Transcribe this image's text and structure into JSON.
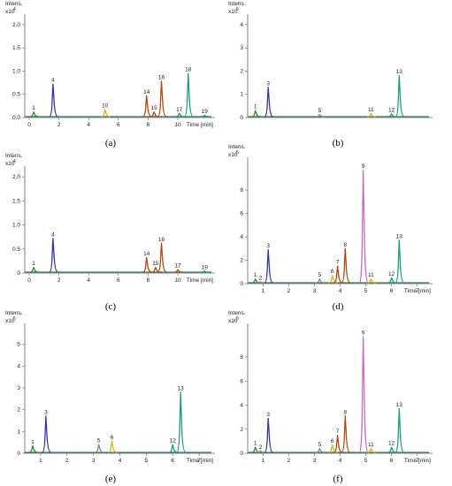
{
  "chart_data": [
    {
      "type": "line",
      "caption": "(a)",
      "yunit": "Intens.",
      "yexp": "x10",
      "yexp_power": "4",
      "xlabel": "Time [min]",
      "xlim": [
        -0.3,
        12.5
      ],
      "ylim": [
        0,
        2.15
      ],
      "xticks": [
        "0",
        "2",
        "4",
        "6",
        "8",
        "10"
      ],
      "xtick_values": [
        0,
        2,
        4,
        6,
        8,
        10
      ],
      "yticks": [
        "0.0",
        "0.5",
        "1.0",
        "1.5",
        "2.0"
      ],
      "ytick_values": [
        0.0,
        0.5,
        1.0,
        1.5,
        2.0
      ],
      "peaks": [
        {
          "label": "1",
          "x": 0.3,
          "y": 0.12,
          "color": "#2e8b2e"
        },
        {
          "label": "4",
          "x": 1.6,
          "y": 0.72,
          "color": "#3333aa"
        },
        {
          "label": "10",
          "x": 5.1,
          "y": 0.17,
          "color": "#d6b21e"
        },
        {
          "label": "14",
          "x": 7.9,
          "y": 0.47,
          "color": "#b8440f"
        },
        {
          "label": "15",
          "x": 8.4,
          "y": 0.12,
          "color": "#b8440f"
        },
        {
          "label": "16",
          "x": 8.9,
          "y": 0.78,
          "color": "#b8440f"
        },
        {
          "label": "17",
          "x": 10.1,
          "y": 0.09,
          "color": "#1a9a8a"
        },
        {
          "label": "18",
          "x": 10.7,
          "y": 0.95,
          "color": "#1a9a8a"
        },
        {
          "label": "19",
          "x": 11.8,
          "y": 0.05,
          "color": "#1a9a8a"
        }
      ]
    },
    {
      "type": "line",
      "caption": "(b)",
      "yunit": "Intens.",
      "yexp": "x10",
      "yexp_power": "5",
      "xlabel": "",
      "xlim": [
        0.4,
        7.6
      ],
      "ylim": [
        0,
        4.3
      ],
      "xticks": [],
      "xtick_values": [],
      "yticks": [
        "4",
        "3",
        "2",
        "1",
        "0"
      ],
      "ytick_values": [
        4,
        3,
        2,
        1,
        0
      ],
      "peaks": [
        {
          "label": "1",
          "x": 0.7,
          "y": 0.3,
          "color": "#2e8b2e"
        },
        {
          "label": "3",
          "x": 1.2,
          "y": 1.3,
          "color": "#3333aa"
        },
        {
          "label": "5",
          "x": 3.2,
          "y": 0.13,
          "color": "#888888"
        },
        {
          "label": "11",
          "x": 5.2,
          "y": 0.18,
          "color": "#d6b21e"
        },
        {
          "label": "12",
          "x": 6.0,
          "y": 0.16,
          "color": "#1a9a8a"
        },
        {
          "label": "13",
          "x": 6.3,
          "y": 1.8,
          "color": "#1a9a8a"
        }
      ]
    },
    {
      "type": "line",
      "caption": "(c)",
      "yunit": "Intens.",
      "yexp": "x10",
      "yexp_power": "4",
      "xlabel": "Time [min]",
      "xlim": [
        -0.3,
        12.5
      ],
      "ylim": [
        0,
        2.15
      ],
      "xticks": [
        "0",
        "2",
        "4",
        "6",
        "8",
        "10"
      ],
      "xtick_values": [
        0,
        2,
        4,
        6,
        8,
        10
      ],
      "yticks": [
        "0",
        "0.5",
        "1.0",
        "1.5",
        "2.0"
      ],
      "ytick_values": [
        0,
        0.5,
        1.0,
        1.5,
        2.0
      ],
      "peaks": [
        {
          "label": "1",
          "x": 0.3,
          "y": 0.12,
          "color": "#2e8b2e"
        },
        {
          "label": "4",
          "x": 1.6,
          "y": 0.72,
          "color": "#3333aa"
        },
        {
          "label": "14",
          "x": 7.9,
          "y": 0.32,
          "color": "#b8440f"
        },
        {
          "label": "15",
          "x": 8.5,
          "y": 0.12,
          "color": "#b8440f"
        },
        {
          "label": "16",
          "x": 8.9,
          "y": 0.62,
          "color": "#b8440f"
        },
        {
          "label": "17",
          "x": 10.0,
          "y": 0.07,
          "color": "#b8440f"
        },
        {
          "label": "19",
          "x": 11.8,
          "y": 0.04,
          "color": "#1a9a8a"
        }
      ]
    },
    {
      "type": "line",
      "caption": "(d)",
      "yunit": "Intens.",
      "yexp": "x10",
      "yexp_power": "5",
      "xlabel": "Time [min]",
      "xlim": [
        0.4,
        7.6
      ],
      "ylim": [
        0,
        10.5
      ],
      "xticks": [
        "1",
        "2",
        "3",
        "4",
        "5",
        "6",
        "7"
      ],
      "xtick_values": [
        1,
        2,
        3,
        4,
        5,
        6,
        7
      ],
      "yticks": [
        "8",
        "6",
        "4",
        "2",
        "0"
      ],
      "ytick_values": [
        8,
        6,
        4,
        2,
        0
      ],
      "peaks": [
        {
          "label": "1",
          "x": 0.7,
          "y": 0.4,
          "color": "#2e8b2e"
        },
        {
          "label": "2",
          "x": 0.9,
          "y": 0.15,
          "color": "#888888"
        },
        {
          "label": "3",
          "x": 1.2,
          "y": 2.9,
          "color": "#3333aa"
        },
        {
          "label": "5",
          "x": 3.2,
          "y": 0.4,
          "color": "#888888"
        },
        {
          "label": "6",
          "x": 3.7,
          "y": 0.7,
          "color": "#d6b21e"
        },
        {
          "label": "7",
          "x": 3.9,
          "y": 1.5,
          "color": "#b8440f"
        },
        {
          "label": "8",
          "x": 4.2,
          "y": 3.0,
          "color": "#b8440f"
        },
        {
          "label": "9",
          "x": 4.9,
          "y": 9.7,
          "color": "#cc66cc"
        },
        {
          "label": "11",
          "x": 5.2,
          "y": 0.4,
          "color": "#d6b21e"
        },
        {
          "label": "12",
          "x": 6.0,
          "y": 0.5,
          "color": "#1a9a8a"
        },
        {
          "label": "13",
          "x": 6.3,
          "y": 3.7,
          "color": "#1a9a8a"
        }
      ]
    },
    {
      "type": "line",
      "caption": "(e)",
      "yunit": "Intens.",
      "yexp": "x10",
      "yexp_power": "5",
      "xlabel": "Time [min]",
      "xlim": [
        0.4,
        7.6
      ],
      "ylim": [
        0,
        5.8
      ],
      "xticks": [
        "1",
        "2",
        "3",
        "4",
        "5",
        "6",
        "7"
      ],
      "xtick_values": [
        1,
        2,
        3,
        4,
        5,
        6,
        7
      ],
      "yticks": [
        "5",
        "4",
        "3",
        "2",
        "1",
        "0"
      ],
      "ytick_values": [
        5,
        4,
        3,
        2,
        1,
        0
      ],
      "peaks": [
        {
          "label": "1",
          "x": 0.7,
          "y": 0.35,
          "color": "#2e8b2e"
        },
        {
          "label": "3",
          "x": 1.2,
          "y": 1.7,
          "color": "#3333aa"
        },
        {
          "label": "5",
          "x": 3.2,
          "y": 0.4,
          "color": "#888888"
        },
        {
          "label": "6",
          "x": 3.7,
          "y": 0.55,
          "color": "#d6b21e"
        },
        {
          "label": "12",
          "x": 6.0,
          "y": 0.4,
          "color": "#1a9a8a"
        },
        {
          "label": "13",
          "x": 6.3,
          "y": 2.8,
          "color": "#1a9a8a"
        }
      ]
    },
    {
      "type": "line",
      "caption": "(f)",
      "yunit": "Intens.",
      "yexp": "x10",
      "yexp_power": "5",
      "xlabel": "Time [min]",
      "xlim": [
        0.4,
        7.6
      ],
      "ylim": [
        0,
        10.5
      ],
      "xticks": [
        "1",
        "2",
        "3",
        "4",
        "5",
        "6",
        "7"
      ],
      "xtick_values": [
        1,
        2,
        3,
        4,
        5,
        6,
        7
      ],
      "yticks": [
        "8",
        "6",
        "4",
        "2",
        "0"
      ],
      "ytick_values": [
        8,
        6,
        4,
        2,
        0
      ],
      "peaks": [
        {
          "label": "1",
          "x": 0.7,
          "y": 0.5,
          "color": "#2e8b2e"
        },
        {
          "label": "2",
          "x": 0.9,
          "y": 0.2,
          "color": "#888888"
        },
        {
          "label": "3",
          "x": 1.2,
          "y": 2.9,
          "color": "#3333aa"
        },
        {
          "label": "5",
          "x": 3.2,
          "y": 0.4,
          "color": "#888888"
        },
        {
          "label": "6",
          "x": 3.7,
          "y": 0.7,
          "color": "#d6b21e"
        },
        {
          "label": "7",
          "x": 3.9,
          "y": 1.5,
          "color": "#b8440f"
        },
        {
          "label": "8",
          "x": 4.2,
          "y": 3.1,
          "color": "#b8440f"
        },
        {
          "label": "9",
          "x": 4.9,
          "y": 9.7,
          "color": "#cc66cc"
        },
        {
          "label": "11",
          "x": 5.2,
          "y": 0.4,
          "color": "#d6b21e"
        },
        {
          "label": "12",
          "x": 6.0,
          "y": 0.5,
          "color": "#1a9a8a"
        },
        {
          "label": "13",
          "x": 6.3,
          "y": 3.7,
          "color": "#1a9a8a"
        }
      ]
    }
  ]
}
